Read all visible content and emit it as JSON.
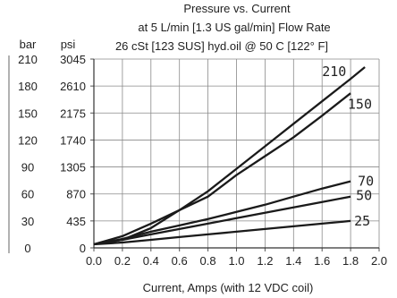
{
  "chart_data": {
    "type": "line",
    "title_lines": [
      "Pressure vs. Current",
      "at 5 L/min [1.3 US gal/min] Flow Rate",
      "26 cSt [123 SUS] hyd.oil @ 50 C [122° F]"
    ],
    "xlabel": "Current, Amps (with 12 VDC coil)",
    "xlim": [
      0,
      2.0
    ],
    "x_ticks": [
      "0.0",
      "0.2",
      "0.4",
      "0.6",
      "0.8",
      "1.0",
      "1.2",
      "1.4",
      "1.6",
      "1.8",
      "2.0"
    ],
    "ylim_bar": [
      0,
      210
    ],
    "y_unit_bar": "bar",
    "y_unit_psi": "psi",
    "y_ticks_bar": [
      "0",
      "30",
      "60",
      "90",
      "120",
      "150",
      "180",
      "210"
    ],
    "y_ticks_psi": [
      "0",
      "435",
      "870",
      "1305",
      "1740",
      "2175",
      "2610",
      "3045"
    ],
    "grid": true,
    "series": [
      {
        "name": "210",
        "x": [
          0,
          0.2,
          0.4,
          0.6,
          0.8,
          1.0,
          1.2,
          1.4,
          1.6,
          1.8,
          1.9
        ],
        "y": [
          4,
          9,
          22,
          42,
          63,
          88,
          113,
          138,
          163,
          188,
          201
        ]
      },
      {
        "name": "150",
        "x": [
          0,
          0.2,
          0.4,
          0.6,
          0.8,
          1.0,
          1.2,
          1.4,
          1.6,
          1.8
        ],
        "y": [
          4,
          13,
          27,
          42,
          57,
          81,
          102,
          123,
          147,
          172
        ]
      },
      {
        "name": "70",
        "x": [
          0,
          0.2,
          0.4,
          0.6,
          0.8,
          1.0,
          1.2,
          1.4,
          1.6,
          1.8
        ],
        "y": [
          4,
          10,
          18,
          25,
          32,
          40,
          48,
          57,
          66,
          74
        ]
      },
      {
        "name": "50",
        "x": [
          0,
          0.2,
          0.4,
          0.6,
          0.8,
          1.0,
          1.2,
          1.4,
          1.6,
          1.8
        ],
        "y": [
          4,
          9,
          15,
          21,
          27,
          33,
          39,
          45,
          51,
          57
        ]
      },
      {
        "name": "25",
        "x": [
          0,
          0.2,
          0.4,
          0.6,
          0.8,
          1.0,
          1.2,
          1.4,
          1.6,
          1.8
        ],
        "y": [
          4,
          6,
          9,
          12,
          15,
          18,
          21,
          24,
          27,
          30
        ]
      }
    ]
  }
}
